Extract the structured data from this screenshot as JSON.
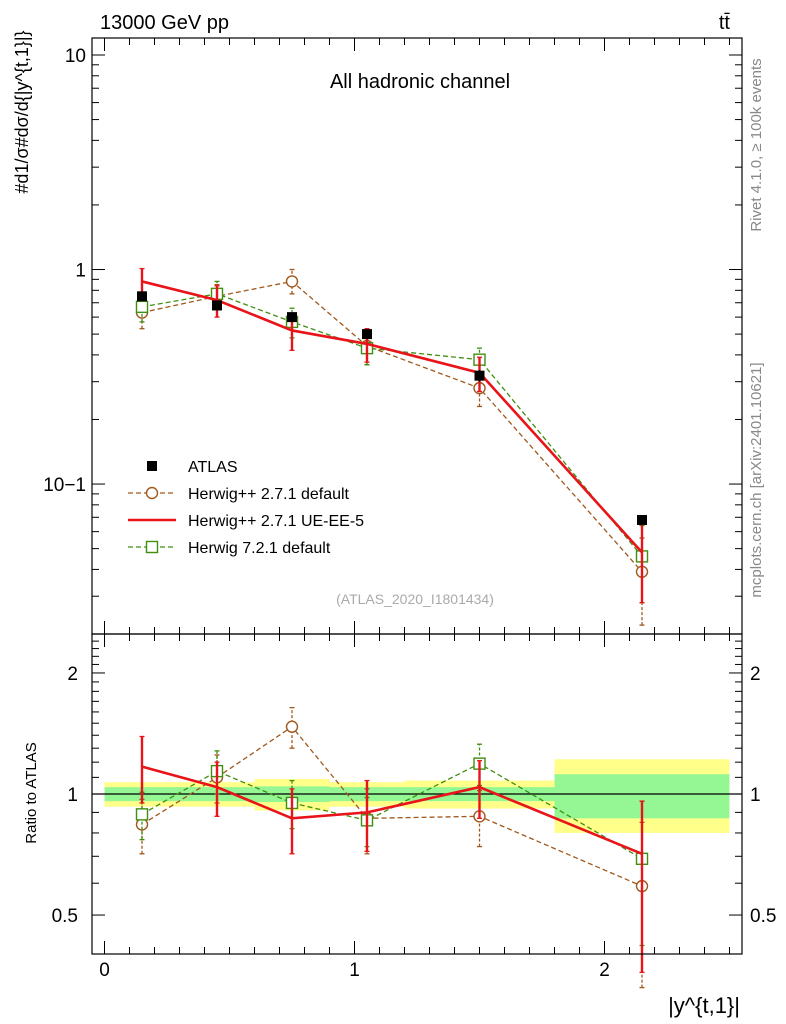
{
  "header": {
    "left": "13000 GeV pp",
    "right": "tt̄"
  },
  "side_labels": {
    "rivet": "Rivet 4.1.0, ≥ 100k events",
    "mcplots": "mcplots.cern.ch [arXiv:2401.10621]"
  },
  "chart_data": [
    {
      "type": "line",
      "title": "All hadronic channel",
      "watermark": "(ATLAS_2020_I1801434)",
      "ylabel": "#d1/σ#dσ/d{|y^{t,1}|}",
      "yscale": "log",
      "ylim": [
        0.02,
        12
      ],
      "xlim": [
        -0.05,
        2.55
      ],
      "y_tick_labels": [
        "10−1",
        "1",
        "10"
      ],
      "legend": [
        {
          "label": "ATLAS",
          "color": "#000000"
        },
        {
          "label": "Herwig++ 2.7.1 default",
          "color": "#a0581c"
        },
        {
          "label": "Herwig++ 2.7.1 UE-EE-5",
          "color": "#e8141a"
        },
        {
          "label": "Herwig 7.2.1 default",
          "color": "#3f8f10"
        }
      ],
      "x": [
        0.15,
        0.45,
        0.75,
        1.05,
        1.5,
        2.15
      ],
      "series": [
        {
          "name": "ATLAS",
          "values": [
            0.75,
            0.68,
            0.6,
            0.5,
            0.32,
            0.068
          ],
          "err_lo": [
            0.73,
            0.66,
            0.58,
            0.48,
            0.3,
            0.066
          ],
          "err_hi": [
            0.77,
            0.7,
            0.62,
            0.52,
            0.34,
            0.07
          ]
        },
        {
          "name": "Herwig++ 2.7.1 default",
          "values": [
            0.63,
            0.75,
            0.88,
            0.44,
            0.28,
            0.039
          ],
          "err_lo": [
            0.53,
            0.65,
            0.77,
            0.36,
            0.23,
            0.022
          ],
          "err_hi": [
            0.73,
            0.85,
            1.0,
            0.52,
            0.33,
            0.056
          ]
        },
        {
          "name": "Herwig++ 2.7.1 UE-EE-5",
          "values": [
            0.88,
            0.72,
            0.52,
            0.45,
            0.33,
            0.048
          ],
          "err_lo": [
            0.75,
            0.6,
            0.42,
            0.37,
            0.27,
            0.028
          ],
          "err_hi": [
            1.01,
            0.84,
            0.62,
            0.53,
            0.39,
            0.068
          ]
        },
        {
          "name": "Herwig 7.2.1 default",
          "values": [
            0.67,
            0.77,
            0.57,
            0.43,
            0.38,
            0.046
          ],
          "err_lo": [
            0.57,
            0.66,
            0.48,
            0.36,
            0.33,
            0.028
          ],
          "err_hi": [
            0.77,
            0.88,
            0.66,
            0.5,
            0.43,
            0.064
          ]
        }
      ]
    },
    {
      "type": "line",
      "ylabel": "Ratio to ATLAS",
      "xlabel": "|y^{t,1}|",
      "yscale": "log",
      "ylim": [
        0.4,
        2.5
      ],
      "xlim": [
        -0.05,
        2.55
      ],
      "x_tick_labels": [
        "0",
        "1",
        "2"
      ],
      "y_tick_labels": [
        "0.5",
        "1",
        "2"
      ],
      "bands": [
        {
          "x0": 0.0,
          "x1": 0.3,
          "stat_lo": 0.96,
          "stat_hi": 1.04,
          "tot_lo": 0.93,
          "tot_hi": 1.07
        },
        {
          "x0": 0.3,
          "x1": 0.6,
          "stat_lo": 0.96,
          "stat_hi": 1.04,
          "tot_lo": 0.93,
          "tot_hi": 1.07
        },
        {
          "x0": 0.6,
          "x1": 0.9,
          "stat_lo": 0.955,
          "stat_hi": 1.045,
          "tot_lo": 0.91,
          "tot_hi": 1.09
        },
        {
          "x0": 0.9,
          "x1": 1.2,
          "stat_lo": 0.96,
          "stat_hi": 1.04,
          "tot_lo": 0.93,
          "tot_hi": 1.07
        },
        {
          "x0": 1.2,
          "x1": 1.8,
          "stat_lo": 0.96,
          "stat_hi": 1.04,
          "tot_lo": 0.92,
          "tot_hi": 1.08
        },
        {
          "x0": 1.8,
          "x1": 2.5,
          "stat_lo": 0.87,
          "stat_hi": 1.12,
          "tot_lo": 0.8,
          "tot_hi": 1.22
        }
      ],
      "x": [
        0.15,
        0.45,
        0.75,
        1.05,
        1.5,
        2.15
      ],
      "series": [
        {
          "name": "Herwig++ 2.7.1 default",
          "values": [
            0.84,
            1.1,
            1.47,
            0.87,
            0.88,
            0.59
          ],
          "err_lo": [
            0.71,
            0.95,
            1.3,
            0.71,
            0.74,
            0.33
          ],
          "err_hi": [
            0.97,
            1.25,
            1.64,
            1.03,
            1.02,
            0.85
          ]
        },
        {
          "name": "Herwig++ 2.7.1 UE-EE-5",
          "values": [
            1.17,
            1.04,
            0.87,
            0.9,
            1.04,
            0.71
          ],
          "err_lo": [
            0.95,
            0.88,
            0.71,
            0.72,
            0.87,
            0.36
          ],
          "err_hi": [
            1.39,
            1.2,
            1.03,
            1.08,
            1.21,
            0.96
          ]
        },
        {
          "name": "Herwig 7.2.1 default",
          "values": [
            0.89,
            1.14,
            0.95,
            0.86,
            1.19,
            0.69
          ],
          "err_lo": [
            0.77,
            1.0,
            0.82,
            0.74,
            1.05,
            0.42
          ],
          "err_hi": [
            1.01,
            1.28,
            1.08,
            0.98,
            1.33,
            0.96
          ]
        }
      ]
    }
  ]
}
